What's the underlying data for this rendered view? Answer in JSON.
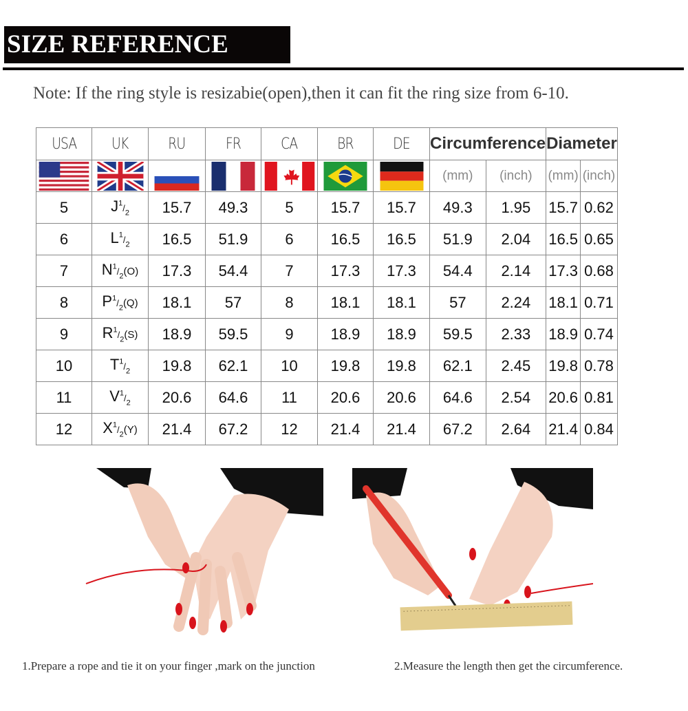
{
  "title": "SIZE REFERENCE",
  "note": "Note: If the ring style is resizabie(open),then it can fit the ring size from 6-10.",
  "table": {
    "headers": [
      "USA",
      "UK",
      "RU",
      "FR",
      "CA",
      "BR",
      "DE",
      "Circumference",
      "Diameter"
    ],
    "flags": [
      "usa-flag",
      "uk-flag",
      "russia-flag",
      "france-flag",
      "canada-flag",
      "brazil-flag",
      "germany-flag"
    ],
    "units": [
      "(mm)",
      "(inch)",
      "(mm)",
      "(inch)"
    ],
    "rows": [
      {
        "usa": "5",
        "uk": {
          "letter": "J",
          "num": "1",
          "den": "2",
          "alt": ""
        },
        "ru": "15.7",
        "fr": "49.3",
        "ca": "5",
        "br": "15.7",
        "de": "15.7",
        "circ_mm": "49.3",
        "circ_in": "1.95",
        "dia_mm": "15.7",
        "dia_in": "0.62"
      },
      {
        "usa": "6",
        "uk": {
          "letter": "L",
          "num": "1",
          "den": "2",
          "alt": ""
        },
        "ru": "16.5",
        "fr": "51.9",
        "ca": "6",
        "br": "16.5",
        "de": "16.5",
        "circ_mm": "51.9",
        "circ_in": "2.04",
        "dia_mm": "16.5",
        "dia_in": "0.65"
      },
      {
        "usa": "7",
        "uk": {
          "letter": "N",
          "num": "1",
          "den": "2",
          "alt": "(O)"
        },
        "ru": "17.3",
        "fr": "54.4",
        "ca": "7",
        "br": "17.3",
        "de": "17.3",
        "circ_mm": "54.4",
        "circ_in": "2.14",
        "dia_mm": "17.3",
        "dia_in": "0.68"
      },
      {
        "usa": "8",
        "uk": {
          "letter": "P",
          "num": "1",
          "den": "2",
          "alt": "(Q)"
        },
        "ru": "18.1",
        "fr": "57",
        "ca": "8",
        "br": "18.1",
        "de": "18.1",
        "circ_mm": "57",
        "circ_in": "2.24",
        "dia_mm": "18.1",
        "dia_in": "0.71"
      },
      {
        "usa": "9",
        "uk": {
          "letter": "R",
          "num": "1",
          "den": "2",
          "alt": "(S)"
        },
        "ru": "18.9",
        "fr": "59.5",
        "ca": "9",
        "br": "18.9",
        "de": "18.9",
        "circ_mm": "59.5",
        "circ_in": "2.33",
        "dia_mm": "18.9",
        "dia_in": "0.74"
      },
      {
        "usa": "10",
        "uk": {
          "letter": "T",
          "num": "1",
          "den": "2",
          "alt": ""
        },
        "ru": "19.8",
        "fr": "62.1",
        "ca": "10",
        "br": "19.8",
        "de": "19.8",
        "circ_mm": "62.1",
        "circ_in": "2.45",
        "dia_mm": "19.8",
        "dia_in": "0.78"
      },
      {
        "usa": "11",
        "uk": {
          "letter": "V",
          "num": "1",
          "den": "2",
          "alt": ""
        },
        "ru": "20.6",
        "fr": "64.6",
        "ca": "11",
        "br": "20.6",
        "de": "20.6",
        "circ_mm": "64.6",
        "circ_in": "2.54",
        "dia_mm": "20.6",
        "dia_in": "0.81"
      },
      {
        "usa": "12",
        "uk": {
          "letter": "X",
          "num": "1",
          "den": "2",
          "alt": "(Y)"
        },
        "ru": "21.4",
        "fr": "67.2",
        "ca": "12",
        "br": "21.4",
        "de": "21.4",
        "circ_mm": "67.2",
        "circ_in": "2.64",
        "dia_mm": "21.4",
        "dia_in": "0.84"
      }
    ]
  },
  "steps": [
    "1.Prepare a rope and tie it on your finger ,mark on the junction",
    "2.Measure the length then get the circumference."
  ],
  "colors": {
    "accent_red": "#d9141b",
    "title_bg": "#0a0606"
  }
}
